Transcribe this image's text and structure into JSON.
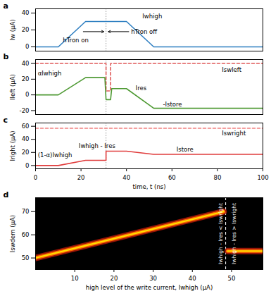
{
  "chart_data": [
    {
      "type": "line",
      "title": "a",
      "y_label": "Iw (µA)",
      "xlim": [
        0,
        100
      ],
      "ylim": [
        -5,
        45
      ],
      "yticks": [
        0,
        20,
        40
      ],
      "tick_labels": "y",
      "rules_x": [
        31
      ],
      "series": [
        {
          "color": "#2f7fc1",
          "x": [
            0,
            10,
            22,
            40,
            52,
            100
          ],
          "values": [
            0,
            0,
            30,
            30,
            0,
            0
          ]
        }
      ],
      "annotations": [
        {
          "text": "Iwhigh",
          "x": 47,
          "y": 36
        },
        {
          "text": "hTron on",
          "x": 12,
          "y": 8,
          "arrow_from": [
            21,
            18
          ],
          "arrow_to": [
            30,
            18
          ]
        },
        {
          "text": "hTron off",
          "x": 42,
          "y": 18,
          "arrow_from": [
            41,
            18
          ],
          "arrow_to": [
            32,
            18
          ]
        }
      ]
    },
    {
      "type": "line",
      "title": "b",
      "y_label": "Ileft (µA)",
      "xlim": [
        0,
        100
      ],
      "ylim": [
        -25,
        45
      ],
      "yticks": [
        -20,
        0,
        20,
        40
      ],
      "tick_labels": "y",
      "rules_x": [
        31
      ],
      "series": [
        {
          "color": "#e05a5a",
          "line_style": "dashed",
          "x": [
            0,
            31,
            31,
            33,
            33,
            100
          ],
          "values": [
            40,
            40,
            5,
            5,
            40,
            40
          ]
        },
        {
          "color": "#4f9a34",
          "x": [
            0,
            10,
            22,
            30.5,
            31,
            33,
            33.5,
            40,
            52,
            100
          ],
          "values": [
            0,
            0,
            22,
            22,
            -6,
            -6,
            8,
            8,
            -17,
            -17
          ]
        }
      ],
      "annotations": [
        {
          "text": "αIwhigh",
          "x": 1,
          "y": 27
        },
        {
          "text": "Ires",
          "x": 44,
          "y": 8
        },
        {
          "text": "-Istore",
          "x": 56,
          "y": -12
        },
        {
          "text": "Iswleft",
          "x": 82,
          "y": 32
        }
      ]
    },
    {
      "type": "line",
      "title": "c",
      "y_label": "Iright (µA)",
      "x_label": "time, t (ns)",
      "xlim": [
        0,
        100
      ],
      "ylim": [
        -5,
        65
      ],
      "xticks": [
        0,
        20,
        40,
        60,
        80,
        100
      ],
      "yticks": [
        0,
        20,
        40,
        60
      ],
      "rules_x": [
        31
      ],
      "series": [
        {
          "color": "#f08080",
          "line_style": "dashed",
          "x": [
            0,
            100
          ],
          "values": [
            57,
            57
          ]
        },
        {
          "color": "#e03c3c",
          "x": [
            0,
            10,
            22,
            31,
            31,
            40,
            52,
            100
          ],
          "values": [
            0,
            0,
            8,
            8,
            22,
            22,
            17,
            17
          ]
        }
      ],
      "annotations": [
        {
          "text": "(1-α)Iwhigh",
          "x": 1,
          "y": 16
        },
        {
          "text": "Iwhigh - Ires",
          "x": 19,
          "y": 30
        },
        {
          "text": "Istore",
          "x": 62,
          "y": 24
        },
        {
          "text": "Iswright",
          "x": 82,
          "y": 49
        }
      ]
    },
    {
      "type": "heatmap",
      "title": "d",
      "y_label": "Iswdem (µA)",
      "x_label": "high level of the write current, Iwhigh (µA)",
      "xlim": [
        0,
        58
      ],
      "ylim": [
        45,
        76
      ],
      "xticks": [
        10,
        20,
        30,
        40,
        50
      ],
      "yticks": [
        50,
        60,
        70
      ],
      "rules_x": [
        48.5
      ],
      "series": [
        {
          "color": "#ffe000",
          "x": [
            0,
            48,
            48.5,
            49,
            58
          ],
          "values": [
            50,
            70,
            null,
            53,
            53
          ]
        }
      ],
      "annotations": [
        {
          "text": "Iwhigh - Ires < Iswright",
          "x": 47.3,
          "y": 60.5
        },
        {
          "text": "Iwhigh - Ires > Iswright",
          "x": 50.6,
          "y": 60.5
        }
      ]
    }
  ]
}
